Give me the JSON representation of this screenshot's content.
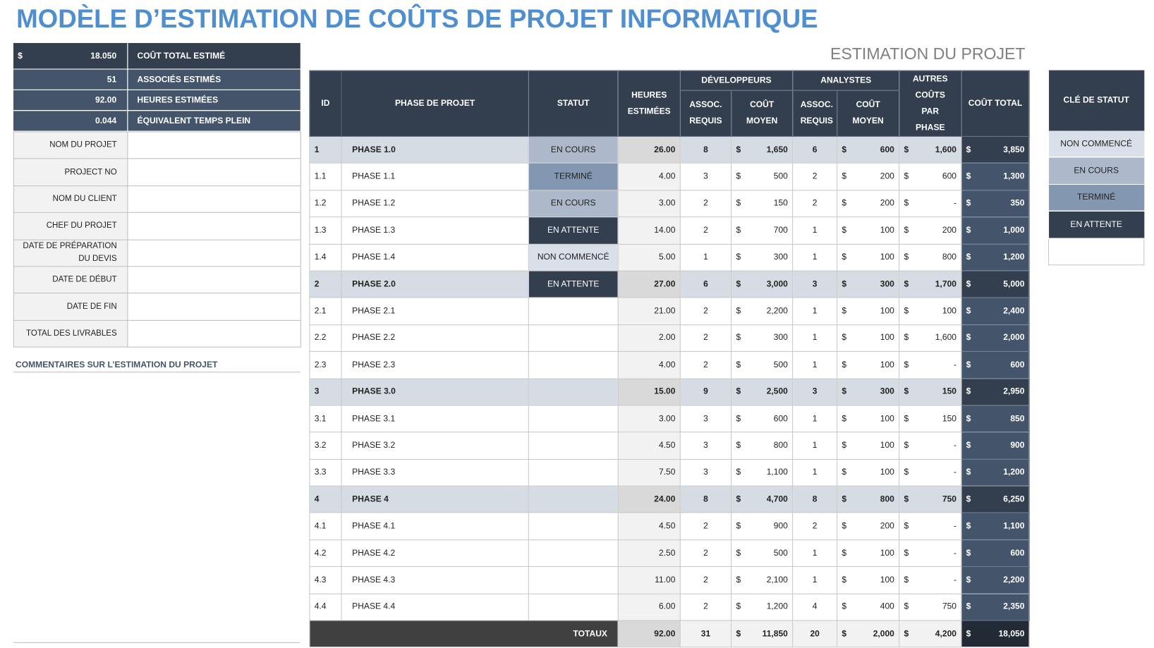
{
  "title": "MODÈLE D’ESTIMATION DE COÛTS DE PROJET INFORMATIQUE",
  "summary": [
    {
      "unit": "$",
      "value": "18.050",
      "label": "COÛT TOTAL ESTIMÉ"
    },
    {
      "value": "51",
      "label": "ASSOCIÉS ESTIMÉS"
    },
    {
      "value": "92.00",
      "label": "HEURES ESTIMÉES"
    },
    {
      "value": "0.044",
      "label": "ÉQUIVALENT TEMPS PLEIN"
    }
  ],
  "info_fields": [
    "NOM DU PROJET",
    "PROJECT NO",
    "NOM DU CLIENT",
    "CHEF DU PROJET",
    "DATE DE PRÉPARATION DU DEVIS",
    "DATE DE DÉBUT",
    "DATE DE FIN",
    "TOTAL DES LIVRABLES"
  ],
  "comments_label": "COMMENTAIRES SUR L’ESTIMATION DU PROJET",
  "table": {
    "title": "ESTIMATION DU PROJET",
    "currency": "$",
    "headers": {
      "id": "ID",
      "phase": "PHASE DE PROJET",
      "status": "STATUT",
      "hours": "HEURES ESTIMÉES",
      "developers": "DÉVELOPPEURS",
      "analysts": "ANALYSTES",
      "assoc": "ASSOC. REQUIS",
      "avg_cost": "COÛT MOYEN",
      "other": "AUTRES COÛTS PAR PHASE",
      "total": "COÛT TOTAL"
    },
    "rows": [
      {
        "id": "1",
        "phase": "PHASE 1.0",
        "status": "EN COURS",
        "hours": "26.00",
        "dev_assoc": "8",
        "dev_cost": "1,650",
        "an_assoc": "6",
        "an_cost": "600",
        "other": "1,600",
        "total": "3,850"
      },
      {
        "id": "1.1",
        "phase": "PHASE 1.1",
        "status": "TERMINÉ",
        "hours": "4.00",
        "dev_assoc": "3",
        "dev_cost": "500",
        "an_assoc": "2",
        "an_cost": "200",
        "other": "600",
        "total": "1,300"
      },
      {
        "id": "1.2",
        "phase": "PHASE 1.2",
        "status": "EN COURS",
        "hours": "3.00",
        "dev_assoc": "2",
        "dev_cost": "150",
        "an_assoc": "2",
        "an_cost": "200",
        "other": "-",
        "total": "350"
      },
      {
        "id": "1.3",
        "phase": "PHASE 1.3",
        "status": "EN ATTENTE",
        "hours": "14.00",
        "dev_assoc": "2",
        "dev_cost": "700",
        "an_assoc": "1",
        "an_cost": "100",
        "other": "200",
        "total": "1,000"
      },
      {
        "id": "1.4",
        "phase": "PHASE 1.4",
        "status": "NON COMMENCÉ",
        "hours": "5.00",
        "dev_assoc": "1",
        "dev_cost": "300",
        "an_assoc": "1",
        "an_cost": "100",
        "other": "800",
        "total": "1,200"
      },
      {
        "id": "2",
        "phase": "PHASE 2.0",
        "status": "EN ATTENTE",
        "hours": "27.00",
        "dev_assoc": "6",
        "dev_cost": "3,000",
        "an_assoc": "3",
        "an_cost": "300",
        "other": "1,700",
        "total": "5,000"
      },
      {
        "id": "2.1",
        "phase": "PHASE 2.1",
        "hours": "21.00",
        "dev_assoc": "2",
        "dev_cost": "2,200",
        "an_assoc": "1",
        "an_cost": "100",
        "other": "100",
        "total": "2,400"
      },
      {
        "id": "2.2",
        "phase": "PHASE 2.2",
        "hours": "2.00",
        "dev_assoc": "2",
        "dev_cost": "300",
        "an_assoc": "1",
        "an_cost": "100",
        "other": "1,600",
        "total": "2,000"
      },
      {
        "id": "2.3",
        "phase": "PHASE 2.3",
        "hours": "4.00",
        "dev_assoc": "2",
        "dev_cost": "500",
        "an_assoc": "1",
        "an_cost": "100",
        "other": "-",
        "total": "600"
      },
      {
        "id": "3",
        "phase": "PHASE 3.0",
        "hours": "15.00",
        "dev_assoc": "9",
        "dev_cost": "2,500",
        "an_assoc": "3",
        "an_cost": "300",
        "other": "150",
        "total": "2,950"
      },
      {
        "id": "3.1",
        "phase": "PHASE 3.1",
        "hours": "3.00",
        "dev_assoc": "3",
        "dev_cost": "600",
        "an_assoc": "1",
        "an_cost": "100",
        "other": "150",
        "total": "850"
      },
      {
        "id": "3.2",
        "phase": "PHASE 3.2",
        "hours": "4.50",
        "dev_assoc": "3",
        "dev_cost": "800",
        "an_assoc": "1",
        "an_cost": "100",
        "other": "-",
        "total": "900"
      },
      {
        "id": "3.3",
        "phase": "PHASE 3.3",
        "hours": "7.50",
        "dev_assoc": "3",
        "dev_cost": "1,100",
        "an_assoc": "1",
        "an_cost": "100",
        "other": "-",
        "total": "1,200"
      },
      {
        "id": "4",
        "phase": "PHASE 4",
        "hours": "24.00",
        "dev_assoc": "8",
        "dev_cost": "4,700",
        "an_assoc": "8",
        "an_cost": "800",
        "other": "750",
        "total": "6,250"
      },
      {
        "id": "4.1",
        "phase": "PHASE 4.1",
        "hours": "4.50",
        "dev_assoc": "2",
        "dev_cost": "900",
        "an_assoc": "2",
        "an_cost": "200",
        "other": "-",
        "total": "1,100"
      },
      {
        "id": "4.2",
        "phase": "PHASE 4.2",
        "hours": "2.50",
        "dev_assoc": "2",
        "dev_cost": "500",
        "an_assoc": "1",
        "an_cost": "100",
        "other": "-",
        "total": "600"
      },
      {
        "id": "4.3",
        "phase": "PHASE 4.3",
        "hours": "11.00",
        "dev_assoc": "2",
        "dev_cost": "2,100",
        "an_assoc": "1",
        "an_cost": "100",
        "other": "-",
        "total": "2,200"
      },
      {
        "id": "4.4",
        "phase": "PHASE 4.4",
        "hours": "6.00",
        "dev_assoc": "2",
        "dev_cost": "1,200",
        "an_assoc": "4",
        "an_cost": "400",
        "other": "750",
        "total": "2,350"
      }
    ],
    "totals": {
      "label": "TOTAUX",
      "hours": "92.00",
      "dev_assoc": "31",
      "dev_cost": "11,850",
      "an_assoc": "20",
      "an_cost": "2,000",
      "other": "4,200",
      "total": "18,050"
    }
  },
  "status_key": {
    "title": "CLÉ DE STATUT",
    "items": [
      {
        "label": "NON COMMENCÉ",
        "color": "#d9e0e9"
      },
      {
        "label": "EN COURS",
        "color": "#adb9ca"
      },
      {
        "label": "TERMINÉ",
        "color": "#8497b0"
      },
      {
        "label": "EN ATTENTE",
        "color": "#333f4f"
      }
    ]
  }
}
